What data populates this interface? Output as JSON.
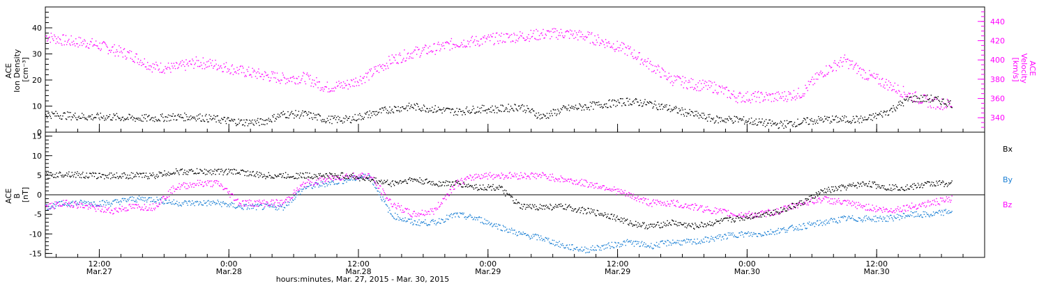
{
  "chart_data": [
    {
      "type": "scatter",
      "panel": "top",
      "ylabel_left": [
        "ACE",
        "Ion Density",
        "[cm⁻³]"
      ],
      "ylabel_right": [
        "ACE",
        "Velocity",
        "[km/s]"
      ],
      "ylim_left": [
        0,
        48
      ],
      "ylim_right": [
        325,
        455
      ],
      "yticks_left": [
        "0",
        "10",
        "20",
        "30",
        "40"
      ],
      "yticks_right": [
        "340",
        "360",
        "380",
        "400",
        "420",
        "440"
      ],
      "yticks_left_values": [
        0,
        10,
        20,
        30,
        40
      ],
      "yticks_right_values": [
        340,
        360,
        380,
        400,
        420,
        440
      ],
      "colors": {
        "density": "#000000",
        "velocity": "#ff00ff"
      },
      "series": [
        {
          "name": "Ion Density",
          "axis": "left",
          "x_hours": [
            0,
            2,
            4,
            6,
            8,
            10,
            12,
            14,
            16,
            18,
            20,
            22,
            24,
            26,
            28,
            30,
            32,
            34,
            36,
            38,
            40,
            42,
            44,
            46,
            48,
            50,
            52,
            54,
            56,
            58,
            60,
            62,
            64,
            66,
            68,
            70,
            72,
            74,
            76,
            78,
            80,
            82,
            84
          ],
          "values": [
            7,
            6.5,
            6,
            6,
            5.5,
            5.5,
            6,
            6,
            5,
            4,
            4,
            7,
            7,
            5,
            5,
            7,
            9,
            10,
            9,
            8,
            9,
            9,
            10,
            6,
            9,
            10,
            11,
            12,
            11,
            9,
            7,
            5,
            5,
            4,
            3,
            4,
            5,
            5,
            5,
            8,
            13,
            13,
            11
          ]
        },
        {
          "name": "Velocity",
          "axis": "right",
          "x_hours": [
            0,
            2,
            4,
            6,
            8,
            10,
            12,
            14,
            16,
            18,
            20,
            22,
            24,
            26,
            28,
            30,
            32,
            34,
            36,
            38,
            40,
            42,
            44,
            46,
            48,
            50,
            52,
            54,
            56,
            58,
            60,
            62,
            64,
            66,
            68,
            70,
            72,
            74,
            76,
            78,
            80,
            82,
            84
          ],
          "values": [
            425,
            420,
            418,
            412,
            405,
            393,
            392,
            398,
            395,
            389,
            385,
            381,
            382,
            372,
            375,
            385,
            400,
            408,
            412,
            418,
            420,
            423,
            425,
            427,
            428,
            425,
            418,
            410,
            395,
            380,
            375,
            372,
            362,
            362,
            362,
            366,
            388,
            400,
            385,
            375,
            364,
            356,
            354
          ]
        }
      ]
    },
    {
      "type": "scatter",
      "panel": "bottom",
      "ylabel_left": [
        "ACE",
        "B",
        "[nT]"
      ],
      "ylim": [
        -16,
        16
      ],
      "yticks": [
        "-15",
        "-10",
        "-5",
        "0",
        "5",
        "10",
        "15"
      ],
      "ytick_values": [
        -15,
        -10,
        -5,
        0,
        5,
        10,
        15
      ],
      "colors": {
        "Bx": "#000000",
        "By": "#1a7fd4",
        "Bz": "#ff00ff"
      },
      "series": [
        {
          "name": "Bx",
          "x_hours": [
            0,
            2,
            4,
            6,
            8,
            10,
            12,
            14,
            16,
            18,
            20,
            22,
            24,
            26,
            28,
            30,
            32,
            34,
            36,
            38,
            40,
            42,
            44,
            46,
            48,
            50,
            52,
            54,
            56,
            58,
            60,
            62,
            64,
            66,
            68,
            70,
            72,
            74,
            76,
            78,
            80,
            82,
            84
          ],
          "values": [
            5,
            5.5,
            5,
            5,
            5,
            5,
            6,
            6,
            6,
            6,
            5,
            5,
            5,
            5,
            5,
            4,
            3,
            4,
            3,
            3,
            2,
            2,
            -3,
            -3,
            -3,
            -4,
            -5,
            -7,
            -8,
            -7,
            -8,
            -7,
            -6,
            -5,
            -4,
            -2,
            1,
            2,
            3,
            2,
            2,
            3,
            3
          ]
        },
        {
          "name": "By",
          "x_hours": [
            0,
            2,
            4,
            6,
            8,
            10,
            12,
            14,
            16,
            18,
            20,
            22,
            24,
            26,
            28,
            30,
            32,
            34,
            36,
            38,
            40,
            42,
            44,
            46,
            48,
            50,
            52,
            54,
            56,
            58,
            60,
            62,
            64,
            66,
            68,
            70,
            72,
            74,
            76,
            78,
            80,
            82,
            84
          ],
          "values": [
            -3,
            -2,
            -2,
            -2,
            -1,
            -1,
            -2,
            -2,
            -2,
            -3,
            -3,
            -3,
            2,
            3,
            4,
            5,
            -5,
            -7,
            -7,
            -5,
            -6,
            -8,
            -10,
            -11,
            -13,
            -14,
            -13,
            -12,
            -13,
            -12,
            -12,
            -11,
            -10,
            -10,
            -9,
            -8,
            -7,
            -6,
            -6,
            -6,
            -5,
            -5,
            -4
          ]
        },
        {
          "name": "Bz",
          "x_hours": [
            0,
            2,
            4,
            6,
            8,
            10,
            12,
            14,
            16,
            18,
            20,
            22,
            24,
            26,
            28,
            30,
            32,
            34,
            36,
            38,
            40,
            42,
            44,
            46,
            48,
            50,
            52,
            54,
            56,
            58,
            60,
            62,
            64,
            66,
            68,
            70,
            72,
            74,
            76,
            78,
            80,
            82,
            84
          ],
          "values": [
            -3,
            -2,
            -3,
            -4,
            -3,
            -3,
            2,
            3,
            3,
            -2,
            -2,
            -2,
            3,
            4,
            5,
            5,
            -2,
            -5,
            -4,
            3,
            5,
            5,
            5,
            5,
            4,
            3,
            2,
            0,
            -2,
            -2,
            -3,
            -4,
            -5,
            -5,
            -4,
            -2,
            -1,
            -2,
            -3,
            -4,
            -3,
            -2,
            -1
          ]
        }
      ],
      "legend": [
        "Bx",
        "By",
        "Bz"
      ],
      "legend_placement": "right"
    }
  ],
  "xaxis": {
    "range_hours": [
      0,
      87
    ],
    "tick_labels": [
      {
        "time": "12:00",
        "date": "Mar.27",
        "hours": 5
      },
      {
        "time": "0:00",
        "date": "Mar.28",
        "hours": 17
      },
      {
        "time": "12:00",
        "date": "Mar.28",
        "hours": 29
      },
      {
        "time": "0:00",
        "date": "Mar.29",
        "hours": 41
      },
      {
        "time": "12:00",
        "date": "Mar.29",
        "hours": 53
      },
      {
        "time": "0:00",
        "date": "Mar.30",
        "hours": 65
      },
      {
        "time": "12:00",
        "date": "Mar.30",
        "hours": 77
      }
    ],
    "xlabel": "hours:minutes, Mar. 27, 2015 - Mar. 30, 2015"
  }
}
